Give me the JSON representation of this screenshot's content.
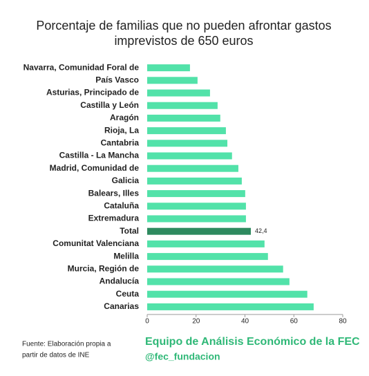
{
  "chart_data": {
    "type": "bar",
    "orientation": "horizontal",
    "title": [
      "Porcentaje de familias que no pueden afrontar gastos",
      "imprevistos de 650 euros"
    ],
    "categories": [
      "Navarra, Comunidad Foral de",
      "País Vasco",
      "Asturias, Principado de",
      "Castilla y León",
      "Aragón",
      "Rioja, La",
      "Cantabria",
      "Castilla - La Mancha",
      "Madrid, Comunidad de",
      "Galicia",
      "Balears, Illes",
      "Cataluña",
      "Extremadura",
      "Total",
      "Comunitat Valenciana",
      "Melilla",
      "Murcia, Región de",
      "Andalucía",
      "Ceuta",
      "Canarias"
    ],
    "values": [
      17.5,
      20.6,
      25.7,
      28.8,
      29.9,
      32.2,
      32.8,
      34.7,
      37.3,
      38.7,
      40.1,
      40.4,
      40.4,
      42.4,
      48.0,
      49.4,
      55.6,
      58.2,
      65.5,
      68.1
    ],
    "value_labels": [
      null,
      null,
      null,
      null,
      null,
      null,
      null,
      null,
      null,
      null,
      null,
      null,
      null,
      "42,4",
      null,
      null,
      null,
      null,
      null,
      null
    ],
    "colors": [
      "#52e2a9",
      "#52e2a9",
      "#52e2a9",
      "#52e2a9",
      "#52e2a9",
      "#52e2a9",
      "#52e2a9",
      "#52e2a9",
      "#52e2a9",
      "#52e2a9",
      "#52e2a9",
      "#52e2a9",
      "#52e2a9",
      "#2e8a5f",
      "#52e2a9",
      "#52e2a9",
      "#52e2a9",
      "#52e2a9",
      "#52e2a9",
      "#52e2a9"
    ],
    "xlim": [
      0,
      80
    ],
    "xticks": [
      0,
      20,
      40,
      60,
      80
    ],
    "grid": false,
    "source": [
      "Fuente: Elaboración propia a",
      "partir de datos de INE"
    ],
    "credit": "Equipo de Análisis Económico de la FEC",
    "handle": "@fec_fundacion"
  }
}
